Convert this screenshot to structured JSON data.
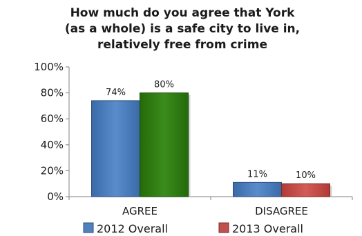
{
  "chart_data": {
    "type": "bar",
    "title_lines": [
      "How much do you agree that York",
      "(as a whole) is a safe city to live in,",
      "relatively free from crime"
    ],
    "categories": [
      "AGREE",
      "DISAGREE"
    ],
    "series": [
      {
        "name": "2012 Overall",
        "values": [
          74,
          11
        ],
        "labels": [
          "74%",
          "11%"
        ],
        "color": "#4f81bd"
      },
      {
        "name": "2013 Overall",
        "values": [
          80,
          10
        ],
        "labels": [
          "80%",
          "10%"
        ],
        "color": "#2e7d10"
      }
    ],
    "disagree_2013_color": "#c0504d",
    "legend_colors": [
      "#4f81bd",
      "#c0504d"
    ],
    "ylim": [
      0,
      100
    ],
    "yticks": [
      0,
      20,
      40,
      60,
      80,
      100
    ],
    "ytick_labels": [
      "0%",
      "20%",
      "40%",
      "60%",
      "80%",
      "100%"
    ],
    "legend_position": "bottom",
    "grid": false
  }
}
